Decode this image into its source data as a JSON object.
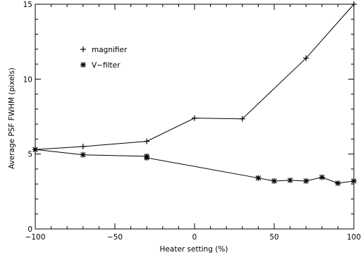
{
  "chart_data": {
    "type": "line",
    "title": "",
    "xlabel": "Heater setting (%)",
    "ylabel": "Average PSF FWHM (pixels)",
    "xlim": [
      -100,
      100
    ],
    "ylim": [
      0,
      15
    ],
    "x_ticks": [
      -100,
      -50,
      0,
      50,
      100
    ],
    "x_tick_labels": [
      "−100",
      "−50",
      "0",
      "50",
      "100"
    ],
    "y_ticks": [
      0,
      5,
      10,
      15
    ],
    "y_tick_labels": [
      "0",
      "5",
      "10",
      "15"
    ],
    "grid": false,
    "legend_position": "top-left",
    "series": [
      {
        "name": "magnifier",
        "marker": "plus",
        "color": "#000000",
        "points": [
          {
            "x": -100,
            "y": 5.3
          },
          {
            "x": -70,
            "y": 5.5
          },
          {
            "x": -30,
            "y": 5.85
          },
          {
            "x": 0,
            "y": 7.4
          },
          {
            "x": 30,
            "y": 7.35
          },
          {
            "x": 70,
            "y": 11.4
          },
          {
            "x": 100,
            "y": 15.0
          }
        ]
      },
      {
        "name": "V−filter",
        "marker": "asterisk",
        "color": "#000000",
        "points": [
          {
            "x": -100,
            "y": 5.3
          },
          {
            "x": -70,
            "y": 4.95
          },
          {
            "x": -30,
            "y": 4.85
          },
          {
            "x": -30,
            "y": 4.75
          },
          {
            "x": 40,
            "y": 3.4
          },
          {
            "x": 50,
            "y": 3.2
          },
          {
            "x": 60,
            "y": 3.25
          },
          {
            "x": 70,
            "y": 3.2
          },
          {
            "x": 80,
            "y": 3.45
          },
          {
            "x": 90,
            "y": 3.05
          },
          {
            "x": 100,
            "y": 3.2
          }
        ]
      }
    ]
  }
}
